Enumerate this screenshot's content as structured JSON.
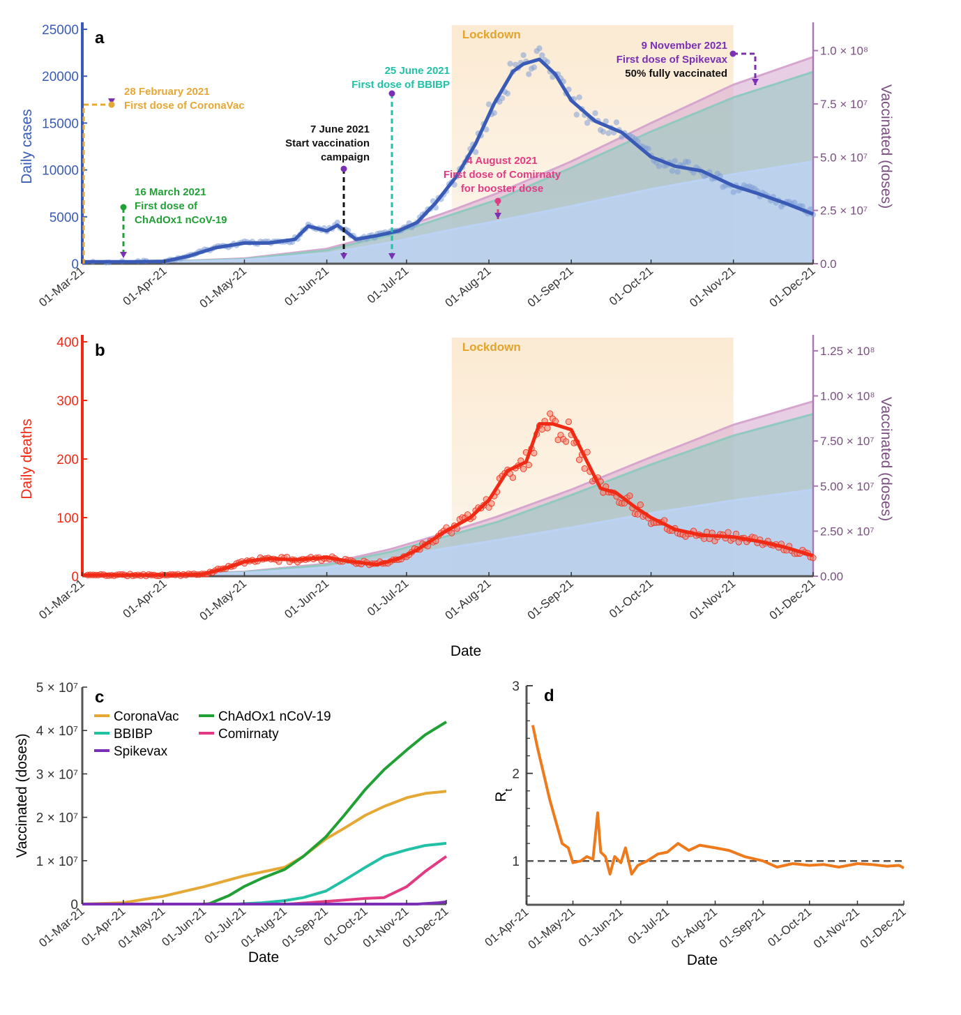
{
  "colors": {
    "cases": "#3a5bb5",
    "cases_dots": "#7f9fd6",
    "deaths": "#f02a15",
    "deaths_dots": "#f47b6c",
    "vaccinated_axis": "#a77ab0",
    "vaccinated_total": "#d6a6cf",
    "vaccinated_full": "#90c9c0",
    "vaccinated_half": "#bcd3f5",
    "lockdown": "#fbead3",
    "lockdown_text": "#e3a42b",
    "coronavac": "#e6a835",
    "chadox": "#21a036",
    "bbibp": "#22c1a6",
    "comirnaty": "#e03b83",
    "spikevax": "#7a2fb5",
    "start_campaign": "#111111",
    "rt_line": "#ef7a1c",
    "rt_ref": "#555555"
  },
  "chart_data": [
    {
      "panel": "a",
      "type": "line",
      "lockdown_label": "Lockdown",
      "lockdown_range": [
        "2021-07-18",
        "2021-11-01"
      ],
      "xlabel": "",
      "ylabel": "Daily cases",
      "y2label": "Vaccinated (doses)",
      "ylim": [
        0,
        25000
      ],
      "y2lim": [
        0,
        110000000
      ],
      "yticks": [
        "0",
        "5000",
        "10000",
        "15000",
        "20000",
        "25000"
      ],
      "y2ticks": [
        {
          "value": 0,
          "label": "0.0"
        },
        {
          "value": 25000000,
          "label": "2.5 × 10⁷"
        },
        {
          "value": 50000000,
          "label": "5.0 × 10⁷"
        },
        {
          "value": 75000000,
          "label": "7.5 × 10⁷"
        },
        {
          "value": 100000000,
          "label": "1.0 × 10⁸"
        }
      ],
      "xticks": [
        "01-Mar-21",
        "01-Apr-21",
        "01-May-21",
        "01-Jun-21",
        "01-Jul-21",
        "01-Aug-21",
        "01-Sep-21",
        "01-Oct-21",
        "01-Nov-21",
        "01-Dec-21"
      ],
      "series": [
        {
          "key": "cases_7day",
          "x": [
            "2021-03-01",
            "2021-03-20",
            "2021-04-01",
            "2021-04-10",
            "2021-04-20",
            "2021-05-01",
            "2021-05-10",
            "2021-05-20",
            "2021-05-25",
            "2021-06-01",
            "2021-06-05",
            "2021-06-12",
            "2021-06-20",
            "2021-06-28",
            "2021-07-05",
            "2021-07-12",
            "2021-07-20",
            "2021-07-27",
            "2021-08-03",
            "2021-08-10",
            "2021-08-14",
            "2021-08-20",
            "2021-08-26",
            "2021-09-01",
            "2021-09-10",
            "2021-09-20",
            "2021-10-01",
            "2021-10-10",
            "2021-10-20",
            "2021-11-01",
            "2021-11-10",
            "2021-11-20",
            "2021-12-01"
          ],
          "y": [
            200,
            200,
            250,
            800,
            1700,
            2200,
            2200,
            2600,
            4000,
            3500,
            4100,
            2600,
            3000,
            3500,
            4400,
            6500,
            9400,
            12800,
            17100,
            20500,
            21300,
            21800,
            20200,
            17400,
            15200,
            14000,
            11400,
            10400,
            9900,
            8300,
            7500,
            6500,
            5300
          ]
        },
        {
          "key": "vaccinated_total",
          "x": [
            "2021-03-01",
            "2021-04-01",
            "2021-05-01",
            "2021-06-01",
            "2021-06-25",
            "2021-07-18",
            "2021-08-04",
            "2021-09-01",
            "2021-10-01",
            "2021-11-01",
            "2021-12-01"
          ],
          "y": [
            0,
            1000000,
            2500000,
            7000000,
            15000000,
            25000000,
            33000000,
            48000000,
            66000000,
            84000000,
            97000000
          ]
        },
        {
          "key": "vaccinated_full",
          "x": [
            "2021-03-01",
            "2021-04-01",
            "2021-05-01",
            "2021-06-01",
            "2021-06-25",
            "2021-07-18",
            "2021-08-04",
            "2021-09-01",
            "2021-10-01",
            "2021-11-01",
            "2021-12-01"
          ],
          "y": [
            0,
            900000,
            2200000,
            6300000,
            13500000,
            23000000,
            30000000,
            45000000,
            62000000,
            78000000,
            90000000
          ]
        },
        {
          "key": "vaccinated_half",
          "x": [
            "2021-03-01",
            "2021-04-01",
            "2021-05-01",
            "2021-06-01",
            "2021-06-25",
            "2021-07-18",
            "2021-08-04",
            "2021-09-01",
            "2021-10-01",
            "2021-11-01",
            "2021-12-01"
          ],
          "y": [
            0,
            700000,
            1800000,
            4800000,
            10000000,
            16000000,
            20000000,
            27000000,
            35000000,
            42000000,
            48000000
          ]
        }
      ],
      "annotations": [
        {
          "lines": [
            "28 February 2021",
            "First dose of CoronaVac"
          ],
          "date": "2021-02-28",
          "color_key": "coronavac"
        },
        {
          "lines": [
            "16 March 2021",
            "First dose of",
            "ChAdOx1 nCoV-19"
          ],
          "date": "2021-03-16",
          "color_key": "chadox"
        },
        {
          "lines": [
            "7 June 2021",
            "Start vaccination",
            "campaign"
          ],
          "date": "2021-06-07",
          "color_key": "start_campaign"
        },
        {
          "lines": [
            "25 June 2021",
            "First dose of BBIBP"
          ],
          "date": "2021-06-25",
          "color_key": "bbibp"
        },
        {
          "lines": [
            "4 August 2021",
            "First dose of Comirnaty",
            "for booster dose"
          ],
          "date": "2021-08-04",
          "color_key": "comirnaty"
        },
        {
          "lines": [
            "9 November 2021",
            "First dose of Spikevax"
          ],
          "date": "2021-11-09",
          "color_key": "spikevax"
        },
        {
          "lines": [
            "50% fully vaccinated"
          ],
          "date": "2021-11-09",
          "color_key": "start_campaign"
        }
      ]
    },
    {
      "panel": "b",
      "type": "line",
      "lockdown_label": "Lockdown",
      "lockdown_range": [
        "2021-07-18",
        "2021-11-01"
      ],
      "xlabel": "Date",
      "ylabel": "Daily deaths",
      "y2label": "Vaccinated (doses)",
      "ylim": [
        0,
        400
      ],
      "y2lim": [
        0,
        130000000
      ],
      "yticks": [
        "0",
        "100",
        "200",
        "300",
        "400"
      ],
      "y2ticks": [
        {
          "value": 0,
          "label": "0.00"
        },
        {
          "value": 25000000,
          "label": "2.50 × 10⁷"
        },
        {
          "value": 50000000,
          "label": "5.00 × 10⁷"
        },
        {
          "value": 75000000,
          "label": "7.50 × 10⁷"
        },
        {
          "value": 100000000,
          "label": "1.00 × 10⁸"
        },
        {
          "value": 125000000,
          "label": "1.25 × 10⁸"
        }
      ],
      "xticks": [
        "01-Mar-21",
        "01-Apr-21",
        "01-May-21",
        "01-Jun-21",
        "01-Jul-21",
        "01-Aug-21",
        "01-Sep-21",
        "01-Oct-21",
        "01-Nov-21",
        "01-Dec-21"
      ],
      "series": [
        {
          "key": "deaths_7day",
          "x": [
            "2021-03-01",
            "2021-04-01",
            "2021-04-15",
            "2021-04-25",
            "2021-05-01",
            "2021-05-10",
            "2021-05-20",
            "2021-06-01",
            "2021-06-10",
            "2021-06-20",
            "2021-06-28",
            "2021-07-05",
            "2021-07-15",
            "2021-07-25",
            "2021-08-01",
            "2021-08-08",
            "2021-08-15",
            "2021-08-20",
            "2021-08-25",
            "2021-09-01",
            "2021-09-07",
            "2021-09-12",
            "2021-09-18",
            "2021-09-25",
            "2021-10-01",
            "2021-10-10",
            "2021-10-20",
            "2021-11-01",
            "2021-11-10",
            "2021-11-20",
            "2021-12-01"
          ],
          "y": [
            2,
            2,
            3,
            15,
            25,
            30,
            28,
            32,
            25,
            20,
            30,
            45,
            75,
            100,
            130,
            180,
            195,
            260,
            260,
            250,
            195,
            150,
            142,
            118,
            100,
            80,
            70,
            67,
            60,
            50,
            35
          ]
        },
        {
          "key": "vaccinated_total",
          "x": [
            "2021-03-01",
            "2021-04-01",
            "2021-05-01",
            "2021-06-01",
            "2021-06-25",
            "2021-07-18",
            "2021-08-04",
            "2021-09-01",
            "2021-10-01",
            "2021-11-01",
            "2021-12-01"
          ],
          "y": [
            0,
            1000000,
            2500000,
            7000000,
            15000000,
            25000000,
            33000000,
            48000000,
            66000000,
            84000000,
            97000000
          ]
        },
        {
          "key": "vaccinated_full",
          "x": [
            "2021-03-01",
            "2021-04-01",
            "2021-05-01",
            "2021-06-01",
            "2021-06-25",
            "2021-07-18",
            "2021-08-04",
            "2021-09-01",
            "2021-10-01",
            "2021-11-01",
            "2021-12-01"
          ],
          "y": [
            0,
            900000,
            2200000,
            6300000,
            13500000,
            23000000,
            30000000,
            45000000,
            62000000,
            78000000,
            90000000
          ]
        },
        {
          "key": "vaccinated_half",
          "x": [
            "2021-03-01",
            "2021-04-01",
            "2021-05-01",
            "2021-06-01",
            "2021-06-25",
            "2021-07-18",
            "2021-08-04",
            "2021-09-01",
            "2021-10-01",
            "2021-11-01",
            "2021-12-01"
          ],
          "y": [
            0,
            700000,
            1800000,
            4800000,
            10000000,
            16000000,
            20000000,
            27000000,
            35000000,
            42000000,
            48000000
          ]
        }
      ]
    },
    {
      "panel": "c",
      "type": "line",
      "xlabel": "Date",
      "ylabel": "Vaccinated (doses)",
      "ylim": [
        0,
        50000000
      ],
      "yticks": [
        {
          "value": 0,
          "label": "0"
        },
        {
          "value": 10000000,
          "label": "1 × 10⁷"
        },
        {
          "value": 20000000,
          "label": "2 × 10⁷"
        },
        {
          "value": 30000000,
          "label": "3 × 10⁷"
        },
        {
          "value": 40000000,
          "label": "4 × 10⁷"
        },
        {
          "value": 50000000,
          "label": "5 × 10⁷"
        }
      ],
      "xticks": [
        "01-Mar-21",
        "01-Apr-21",
        "01-May-21",
        "01-Jun-21",
        "01-Jul-21",
        "01-Aug-21",
        "01-Sep-21",
        "01-Oct-21",
        "01-Nov-21",
        "01-Dec-21"
      ],
      "series": [
        {
          "name": "CoronaVac",
          "color_key": "coronavac",
          "x": [
            "2021-03-01",
            "2021-04-01",
            "2021-05-01",
            "2021-06-01",
            "2021-07-01",
            "2021-08-01",
            "2021-08-15",
            "2021-09-01",
            "2021-09-15",
            "2021-10-01",
            "2021-10-15",
            "2021-11-01",
            "2021-11-15",
            "2021-12-01"
          ],
          "y": [
            0,
            300000,
            1800000,
            4000000,
            6500000,
            8500000,
            11000000,
            15000000,
            17500000,
            20500000,
            22500000,
            24500000,
            25500000,
            26000000
          ]
        },
        {
          "name": "ChAdOx1 nCoV-19",
          "color_key": "chadox",
          "x": [
            "2021-03-01",
            "2021-06-01",
            "2021-06-05",
            "2021-06-20",
            "2021-07-01",
            "2021-07-15",
            "2021-08-01",
            "2021-08-15",
            "2021-09-01",
            "2021-09-15",
            "2021-10-01",
            "2021-10-15",
            "2021-11-01",
            "2021-11-15",
            "2021-12-01"
          ],
          "y": [
            0,
            0,
            100000,
            2000000,
            4000000,
            6000000,
            8000000,
            11000000,
            15500000,
            20500000,
            26500000,
            31000000,
            35500000,
            39000000,
            42000000
          ]
        },
        {
          "name": "BBIBP",
          "color_key": "bbibp",
          "x": [
            "2021-03-01",
            "2021-06-25",
            "2021-07-15",
            "2021-08-01",
            "2021-08-15",
            "2021-09-01",
            "2021-09-15",
            "2021-10-01",
            "2021-10-15",
            "2021-11-01",
            "2021-11-15",
            "2021-12-01"
          ],
          "y": [
            0,
            0,
            300000,
            800000,
            1500000,
            3000000,
            5500000,
            8500000,
            11000000,
            12500000,
            13500000,
            14000000
          ]
        },
        {
          "name": "Comirnaty",
          "color_key": "comirnaty",
          "x": [
            "2021-03-01",
            "2021-08-04",
            "2021-09-01",
            "2021-10-01",
            "2021-10-15",
            "2021-11-01",
            "2021-11-15",
            "2021-12-01"
          ],
          "y": [
            0,
            0,
            600000,
            1300000,
            1500000,
            4000000,
            7500000,
            11000000
          ]
        },
        {
          "name": "Spikevax",
          "color_key": "spikevax",
          "x": [
            "2021-03-01",
            "2021-11-09",
            "2021-11-25",
            "2021-12-01"
          ],
          "y": [
            0,
            0,
            300000,
            500000
          ]
        }
      ]
    },
    {
      "panel": "d",
      "type": "line",
      "xlabel": "Date",
      "ylabel_main": "R",
      "ylabel_sub": "t",
      "ylim": [
        0.5,
        3
      ],
      "yticks": [
        "1",
        "2",
        "3"
      ],
      "reference_y": 1,
      "xticks": [
        "01-Apr-21",
        "01-May-21",
        "01-Jun-21",
        "01-Jul-21",
        "01-Aug-21",
        "01-Sep-21",
        "01-Oct-21",
        "01-Nov-21",
        "01-Dec-21"
      ],
      "series": [
        {
          "key": "rt",
          "x": [
            "2021-04-05",
            "2021-04-08",
            "2021-04-12",
            "2021-04-16",
            "2021-04-20",
            "2021-04-24",
            "2021-04-28",
            "2021-05-01",
            "2021-05-06",
            "2021-05-10",
            "2021-05-14",
            "2021-05-17",
            "2021-05-19",
            "2021-05-22",
            "2021-05-25",
            "2021-05-28",
            "2021-06-01",
            "2021-06-04",
            "2021-06-08",
            "2021-06-12",
            "2021-06-18",
            "2021-06-25",
            "2021-07-01",
            "2021-07-08",
            "2021-07-15",
            "2021-07-22",
            "2021-08-01",
            "2021-08-10",
            "2021-08-20",
            "2021-09-01",
            "2021-09-10",
            "2021-09-20",
            "2021-10-01",
            "2021-10-10",
            "2021-10-20",
            "2021-11-01",
            "2021-11-10",
            "2021-11-20",
            "2021-11-28",
            "2021-12-01"
          ],
          "y": [
            2.55,
            2.3,
            2.0,
            1.7,
            1.45,
            1.2,
            1.15,
            0.98,
            1.0,
            1.05,
            1.02,
            1.55,
            1.1,
            1.05,
            0.85,
            1.05,
            0.98,
            1.15,
            0.85,
            0.95,
            1.0,
            1.08,
            1.1,
            1.2,
            1.12,
            1.18,
            1.15,
            1.12,
            1.05,
            1.0,
            0.93,
            0.97,
            0.95,
            0.96,
            0.93,
            0.97,
            0.96,
            0.94,
            0.95,
            0.92
          ]
        }
      ]
    }
  ]
}
